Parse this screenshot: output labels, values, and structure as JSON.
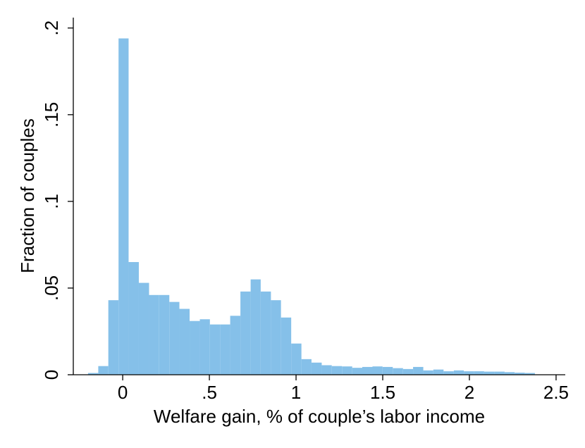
{
  "chart_data": {
    "type": "histogram",
    "xlabel": "Welfare gain, % of couple’s labor income",
    "ylabel": "Fraction of couples",
    "bins": [
      -0.2,
      -0.141,
      -0.083,
      -0.024,
      0.034,
      0.093,
      0.152,
      0.21,
      0.269,
      0.327,
      0.386,
      0.445,
      0.503,
      0.562,
      0.62,
      0.679,
      0.738,
      0.796,
      0.855,
      0.913,
      0.972,
      1.031,
      1.089,
      1.148,
      1.206,
      1.265,
      1.324,
      1.382,
      1.441,
      1.499,
      1.558,
      1.617,
      1.675,
      1.734,
      1.792,
      1.851,
      1.91,
      1.968,
      2.027,
      2.085,
      2.144,
      2.203,
      2.261,
      2.32,
      2.378
    ],
    "values": [
      0.001,
      0.005,
      0.043,
      0.194,
      0.065,
      0.053,
      0.046,
      0.046,
      0.042,
      0.038,
      0.031,
      0.032,
      0.029,
      0.029,
      0.034,
      0.048,
      0.055,
      0.048,
      0.043,
      0.033,
      0.018,
      0.009,
      0.007,
      0.0055,
      0.005,
      0.0048,
      0.004,
      0.0045,
      0.0048,
      0.0045,
      0.0038,
      0.0033,
      0.0045,
      0.0025,
      0.003,
      0.002,
      0.0025,
      0.002,
      0.002,
      0.0018,
      0.0018,
      0.0015,
      0.0012,
      0.001
    ],
    "color": "#85c0e9",
    "xlim": [
      -0.285,
      2.553
    ],
    "ylim": [
      0,
      0.206
    ],
    "xticks": [
      0,
      {
        "value": 0.5,
        "label": ".5"
      },
      1,
      1.5,
      2,
      2.5
    ],
    "yticks": [
      0,
      {
        "value": 0.05,
        "label": ".05"
      },
      {
        "value": 0.1,
        "label": ".1"
      },
      {
        "value": 0.15,
        "label": ".15"
      },
      {
        "value": 0.2,
        "label": ".2"
      }
    ]
  }
}
